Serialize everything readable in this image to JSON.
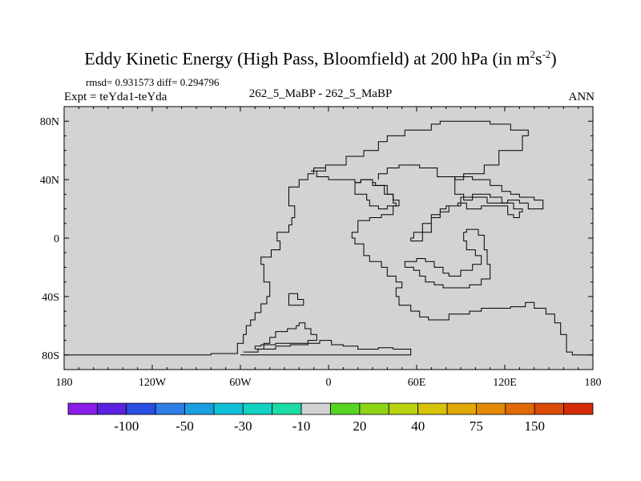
{
  "title": {
    "main": "Eddy Kinetic Energy (High Pass, Bloomfield) at 200 hPa (in m",
    "sup1": "2",
    "mid": "s",
    "sup2": "-2",
    "close": ")"
  },
  "stats": "rmsd= 0.931573 diff= 0.294796",
  "expt": "Expt = teYda1-teYda",
  "center_label": "262_5_MaBP - 262_5_MaBP",
  "season": "ANN",
  "colors": {
    "background_fill": "#d3d3d3",
    "contour": "#000000",
    "colorbar": [
      "#8a1ee8",
      "#5a22e0",
      "#2a4ee2",
      "#2e7ee6",
      "#1c9fe0",
      "#10c0d8",
      "#12d2c2",
      "#1cdca6",
      "#d3d3d3",
      "#58d424",
      "#8ed416",
      "#b8d20e",
      "#d8c20a",
      "#e0a808",
      "#e28a06",
      "#e06a06",
      "#dc4a08",
      "#d42a0a"
    ]
  },
  "chart_data": {
    "type": "contour_map",
    "projection": "cylindrical_equidistant",
    "x_ticks": [
      "180",
      "120W",
      "60W",
      "0",
      "60E",
      "120E",
      "180"
    ],
    "x_tick_values": [
      -180,
      -120,
      -60,
      0,
      60,
      120,
      180
    ],
    "y_ticks": [
      "80N",
      "40N",
      "0",
      "40S",
      "80S"
    ],
    "y_tick_values": [
      80,
      40,
      0,
      -40,
      -80
    ],
    "xlim": [
      -180,
      180
    ],
    "ylim": [
      -90,
      90
    ],
    "colorbar_labels": [
      "-100",
      "-50",
      "-30",
      "-10",
      "20",
      "40",
      "75",
      "150"
    ],
    "field_value": "near zero everywhere (difference of identical runs)",
    "contour_outlines_lonlat": [
      [
        [
          -180,
          -80
        ],
        [
          -160,
          -80
        ],
        [
          -140,
          -80
        ],
        [
          -120,
          -80
        ],
        [
          -100,
          -80
        ],
        [
          -80,
          -79
        ],
        [
          -62,
          -78
        ],
        [
          -62,
          -72
        ],
        [
          -58,
          -66
        ],
        [
          -56,
          -60
        ],
        [
          -53,
          -56
        ],
        [
          -50,
          -51
        ],
        [
          -46,
          -45
        ],
        [
          -42,
          -40
        ],
        [
          -40,
          -36
        ],
        [
          -40,
          -30
        ],
        [
          -44,
          -25
        ],
        [
          -44,
          -18
        ],
        [
          -46,
          -13
        ],
        [
          -39,
          -8
        ],
        [
          -33,
          -2
        ],
        [
          -35,
          4
        ],
        [
          -27,
          9
        ],
        [
          -25,
          14
        ],
        [
          -23,
          22
        ],
        [
          -27,
          28
        ],
        [
          -27,
          35
        ],
        [
          -20,
          40
        ],
        [
          -14,
          44
        ],
        [
          -10,
          48
        ],
        [
          -2,
          50
        ],
        [
          -2,
          46
        ],
        [
          -12,
          46
        ],
        [
          -8,
          42
        ],
        [
          0,
          40
        ],
        [
          10,
          40
        ],
        [
          18,
          38
        ],
        [
          22,
          40
        ],
        [
          30,
          38
        ],
        [
          32,
          36
        ],
        [
          40,
          30
        ],
        [
          44,
          26
        ],
        [
          48,
          22
        ],
        [
          44,
          16
        ],
        [
          36,
          14
        ],
        [
          28,
          12
        ],
        [
          20,
          4
        ],
        [
          16,
          0
        ],
        [
          18,
          -4
        ],
        [
          24,
          -12
        ],
        [
          28,
          -16
        ],
        [
          36,
          -20
        ],
        [
          40,
          -26
        ],
        [
          46,
          -30
        ],
        [
          50,
          -34
        ],
        [
          46,
          -40
        ],
        [
          48,
          -46
        ],
        [
          56,
          -50
        ],
        [
          62,
          -54
        ],
        [
          68,
          -56
        ],
        [
          76,
          -56
        ],
        [
          82,
          -52
        ],
        [
          96,
          -50
        ],
        [
          104,
          -48
        ],
        [
          116,
          -48
        ],
        [
          124,
          -47
        ],
        [
          134,
          -44
        ],
        [
          140,
          -44
        ],
        [
          140,
          -48
        ],
        [
          148,
          -52
        ],
        [
          154,
          -58
        ],
        [
          158,
          -66
        ],
        [
          162,
          -72
        ],
        [
          162,
          -78
        ],
        [
          166,
          -80
        ],
        [
          180,
          -80
        ]
      ],
      [
        [
          -58,
          -78
        ],
        [
          -48,
          -76
        ],
        [
          -36,
          -74
        ],
        [
          -26,
          -73
        ],
        [
          -14,
          -72
        ],
        [
          -6,
          -70
        ],
        [
          2,
          -73
        ],
        [
          10,
          -74
        ],
        [
          20,
          -76
        ],
        [
          34,
          -75
        ],
        [
          44,
          -76
        ],
        [
          56,
          -76
        ],
        [
          56,
          -80
        ],
        [
          40,
          -80
        ],
        [
          20,
          -80
        ],
        [
          0,
          -80
        ],
        [
          -20,
          -80
        ],
        [
          -40,
          -80
        ],
        [
          -60,
          -80
        ]
      ],
      [
        [
          -50,
          -76
        ],
        [
          -44,
          -72
        ],
        [
          -40,
          -68
        ],
        [
          -36,
          -64
        ],
        [
          -28,
          -62
        ],
        [
          -22,
          -60
        ],
        [
          -20,
          -58
        ],
        [
          -16,
          -62
        ],
        [
          -12,
          -66
        ],
        [
          -8,
          -70
        ],
        [
          -14,
          -72
        ],
        [
          -26,
          -72
        ],
        [
          -36,
          -73
        ],
        [
          -46,
          -74
        ],
        [
          -50,
          -76
        ]
      ],
      [
        [
          -27,
          -38
        ],
        [
          -21,
          -38
        ],
        [
          -21,
          -42
        ],
        [
          -17,
          -42
        ],
        [
          -17,
          -46
        ],
        [
          -27,
          -46
        ],
        [
          -27,
          -38
        ]
      ],
      [
        [
          18,
          38
        ],
        [
          22,
          40
        ],
        [
          30,
          36
        ],
        [
          38,
          30
        ],
        [
          44,
          24
        ],
        [
          46,
          22
        ],
        [
          40,
          20
        ],
        [
          34,
          22
        ],
        [
          28,
          26
        ],
        [
          26,
          30
        ],
        [
          18,
          34
        ],
        [
          18,
          38
        ]
      ],
      [
        [
          52,
          -20
        ],
        [
          58,
          -22
        ],
        [
          62,
          -26
        ],
        [
          66,
          -30
        ],
        [
          72,
          -32
        ],
        [
          78,
          -34
        ],
        [
          86,
          -34
        ],
        [
          96,
          -32
        ],
        [
          104,
          -28
        ],
        [
          110,
          -18
        ],
        [
          108,
          -8
        ],
        [
          106,
          2
        ],
        [
          102,
          6
        ],
        [
          94,
          4
        ],
        [
          92,
          -2
        ],
        [
          94,
          -8
        ],
        [
          100,
          -12
        ],
        [
          104,
          -18
        ],
        [
          98,
          -22
        ],
        [
          90,
          -26
        ],
        [
          82,
          -24
        ],
        [
          78,
          -20
        ],
        [
          72,
          -16
        ],
        [
          66,
          -14
        ],
        [
          60,
          -16
        ],
        [
          52,
          -20
        ]
      ],
      [
        [
          56,
          -2
        ],
        [
          64,
          4
        ],
        [
          70,
          14
        ],
        [
          76,
          18
        ],
        [
          82,
          22
        ],
        [
          90,
          28
        ],
        [
          98,
          30
        ],
        [
          110,
          28
        ],
        [
          118,
          24
        ],
        [
          126,
          20
        ],
        [
          132,
          18
        ],
        [
          130,
          14
        ],
        [
          126,
          16
        ],
        [
          122,
          22
        ],
        [
          114,
          22
        ],
        [
          104,
          20
        ],
        [
          94,
          24
        ],
        [
          88,
          22
        ],
        [
          80,
          20
        ],
        [
          76,
          16
        ],
        [
          70,
          10
        ],
        [
          64,
          4
        ],
        [
          58,
          0
        ],
        [
          56,
          -2
        ]
      ],
      [
        [
          -2,
          50
        ],
        [
          12,
          56
        ],
        [
          24,
          60
        ],
        [
          34,
          66
        ],
        [
          40,
          70
        ],
        [
          52,
          74
        ],
        [
          66,
          74
        ],
        [
          70,
          78
        ],
        [
          76,
          80
        ],
        [
          86,
          80
        ],
        [
          100,
          80
        ],
        [
          110,
          78
        ],
        [
          124,
          74
        ],
        [
          136,
          70
        ],
        [
          132,
          60
        ],
        [
          116,
          50
        ],
        [
          106,
          44
        ],
        [
          92,
          40
        ],
        [
          86,
          42
        ],
        [
          74,
          48
        ],
        [
          62,
          50
        ],
        [
          48,
          48
        ],
        [
          40,
          44
        ],
        [
          34,
          40
        ]
      ],
      [
        [
          86,
          42
        ],
        [
          98,
          40
        ],
        [
          110,
          36
        ],
        [
          118,
          32
        ],
        [
          124,
          30
        ],
        [
          130,
          28
        ],
        [
          140,
          26
        ],
        [
          146,
          24
        ],
        [
          146,
          20
        ],
        [
          140,
          20
        ],
        [
          136,
          24
        ],
        [
          130,
          26
        ],
        [
          122,
          24
        ],
        [
          116,
          24
        ],
        [
          108,
          28
        ],
        [
          98,
          26
        ],
        [
          92,
          30
        ],
        [
          86,
          36
        ],
        [
          86,
          42
        ]
      ]
    ]
  }
}
